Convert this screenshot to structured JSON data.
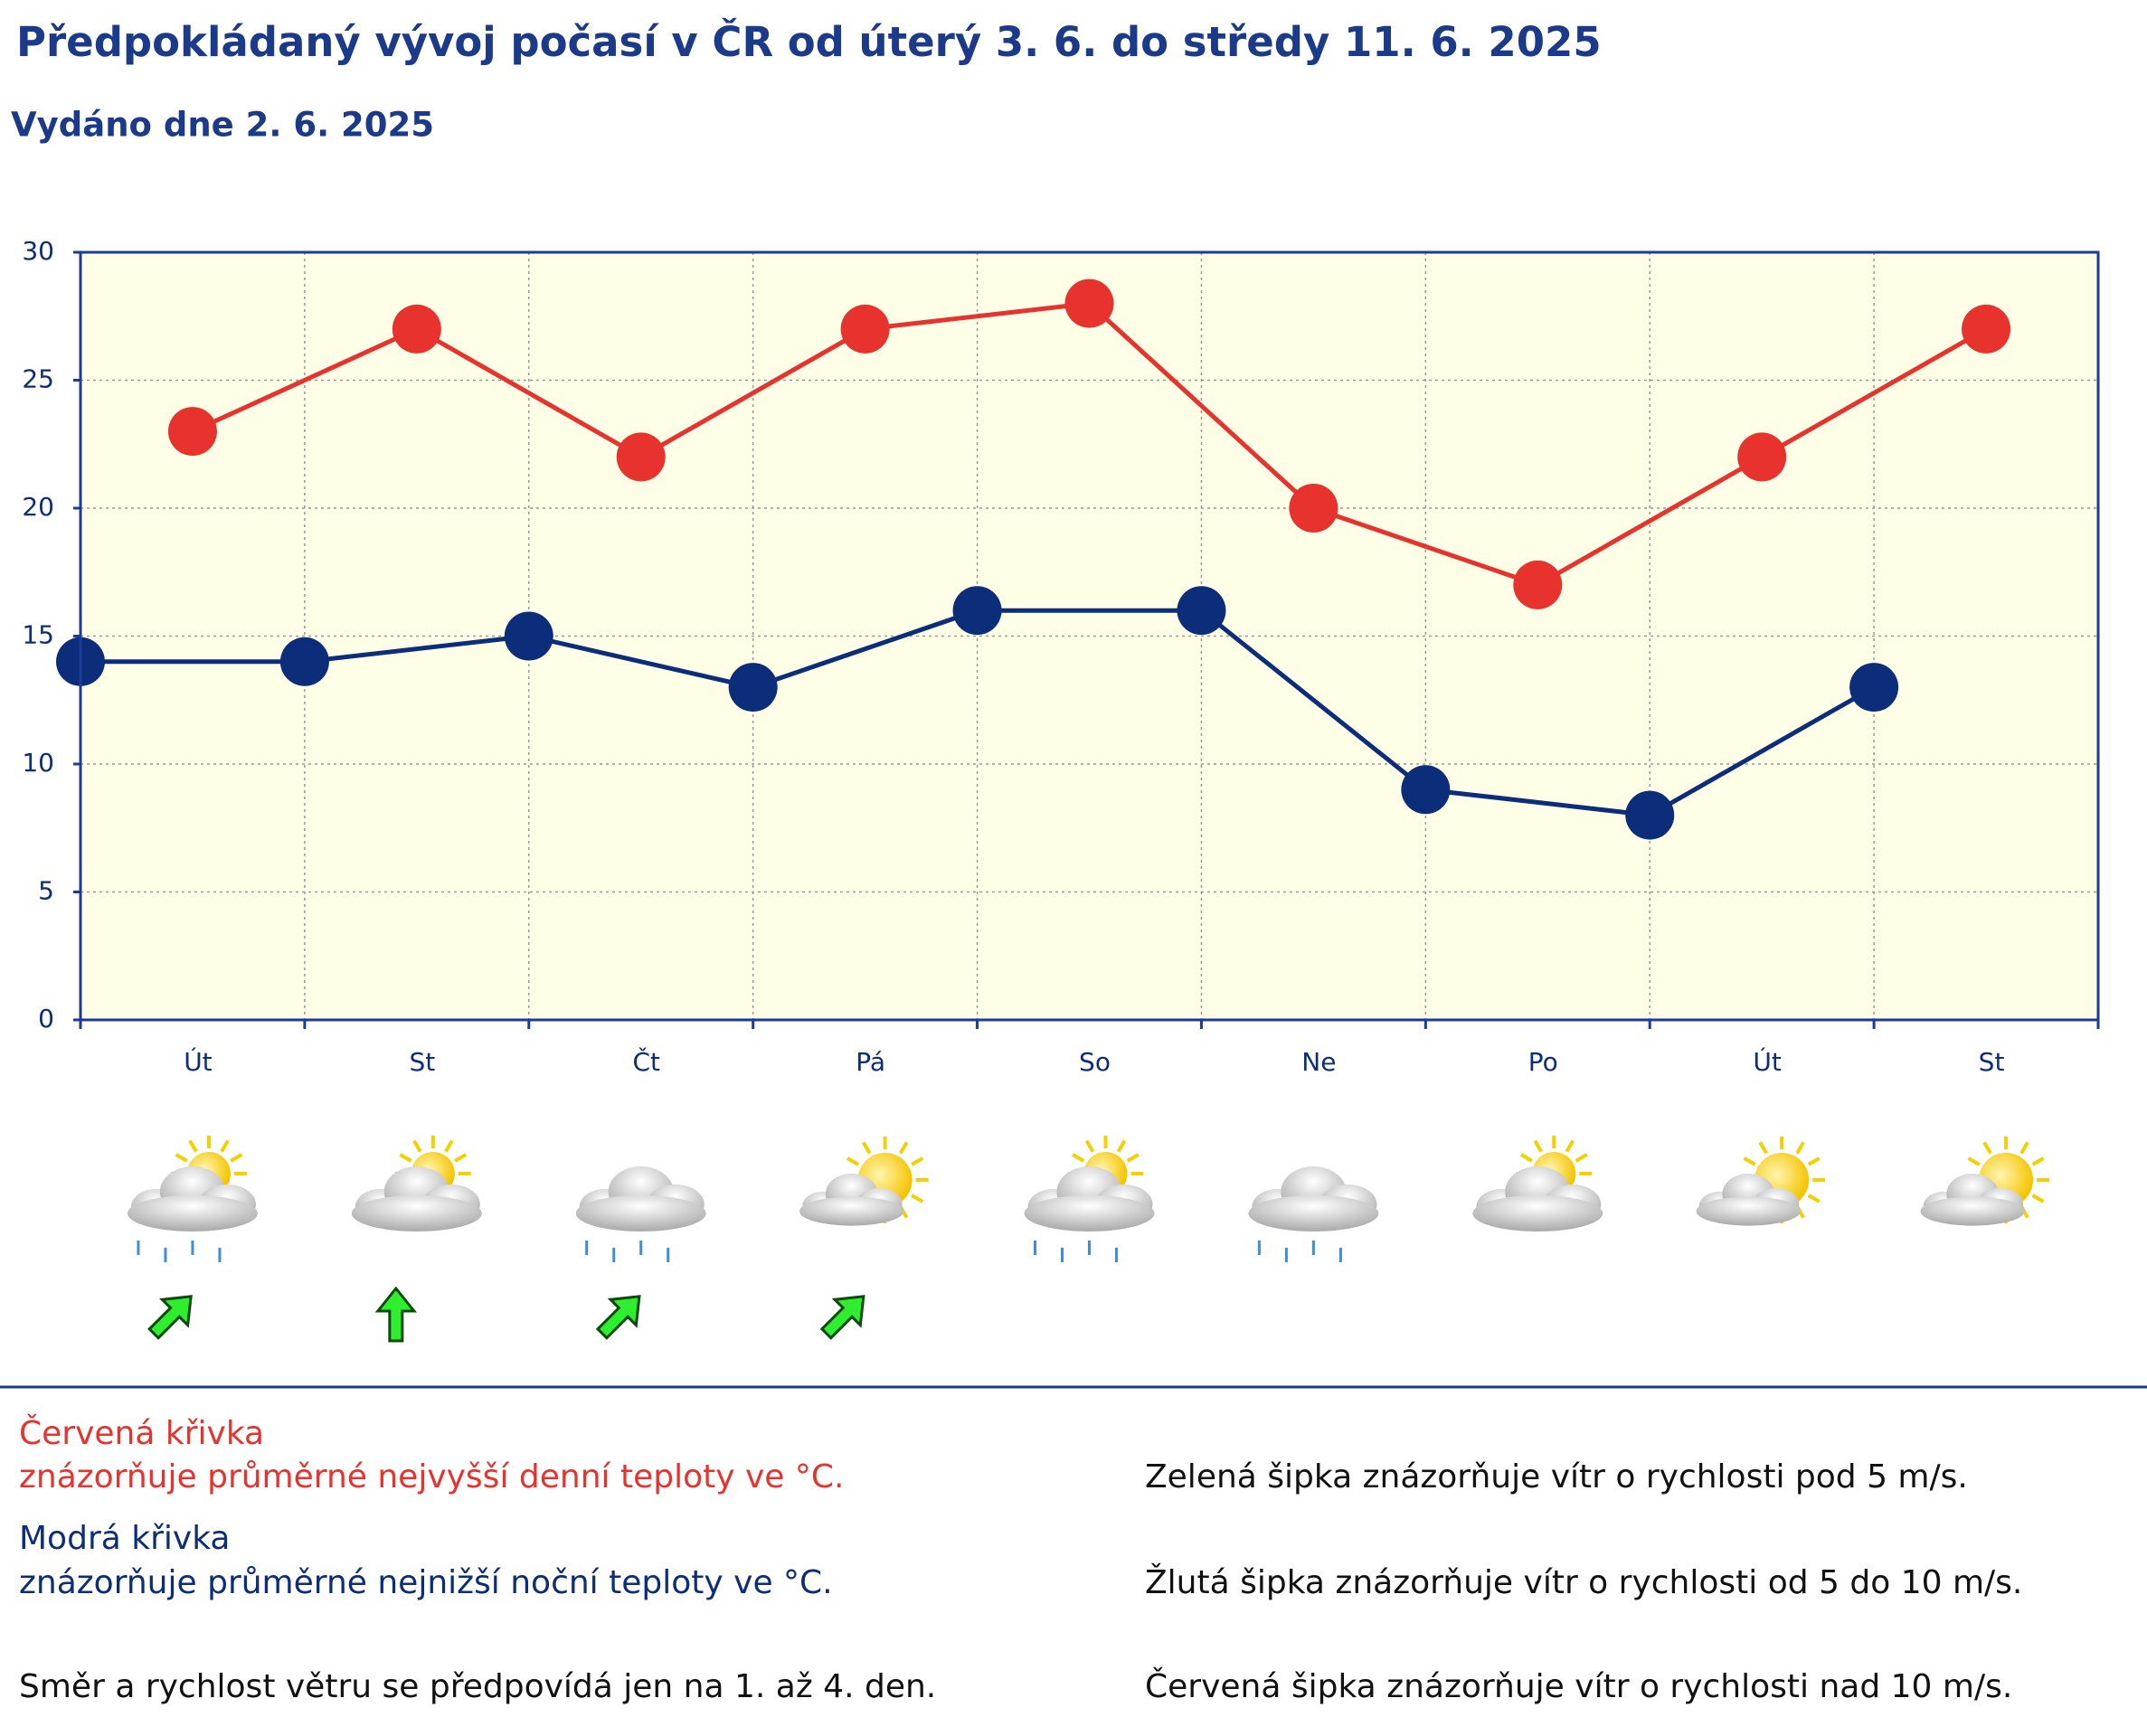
{
  "chart_data": {
    "type": "line",
    "title": "Předpokládaný vývoj počasí v ČR od úterý 3. 6. do středy 11. 6. 2025",
    "subtitle": "Vydáno dne 2. 6. 2025",
    "categories": [
      "Út",
      "St",
      "Čt",
      "Pá",
      "So",
      "Ne",
      "Po",
      "Út",
      "St"
    ],
    "series": [
      {
        "name": "Červená křivka",
        "description": "znázorňuje průměrné nejvyšší denní teploty ve °C.",
        "color": "#e8322d",
        "x_position": "center",
        "values": [
          23,
          27,
          22,
          27,
          28,
          20,
          17,
          22,
          27
        ]
      },
      {
        "name": "Modrá křivka",
        "description": "znázorňuje průměrné nejnižší noční teploty ve °C.",
        "color": "#0c2d7a",
        "x_position": "start",
        "values": [
          14,
          14,
          15,
          13,
          16,
          16,
          9,
          8,
          13
        ]
      }
    ],
    "ylim": [
      0,
      30
    ],
    "yticks": [
      0,
      5,
      10,
      15,
      20,
      25,
      30
    ],
    "grid": true
  },
  "notes": {
    "wind_days": "Směr a rychlost větru se předpovídá jen na 1. až 4. den.",
    "green": "Zelená šipka znázorňuje vítr o rychlosti pod 5 m/s.",
    "yellow": "Žlutá šipka znázorňuje vítr o rychlosti od 5 do 10 m/s.",
    "red": "Červená šipka znázorňuje vítr o rychlosti nad 10 m/s."
  }
}
